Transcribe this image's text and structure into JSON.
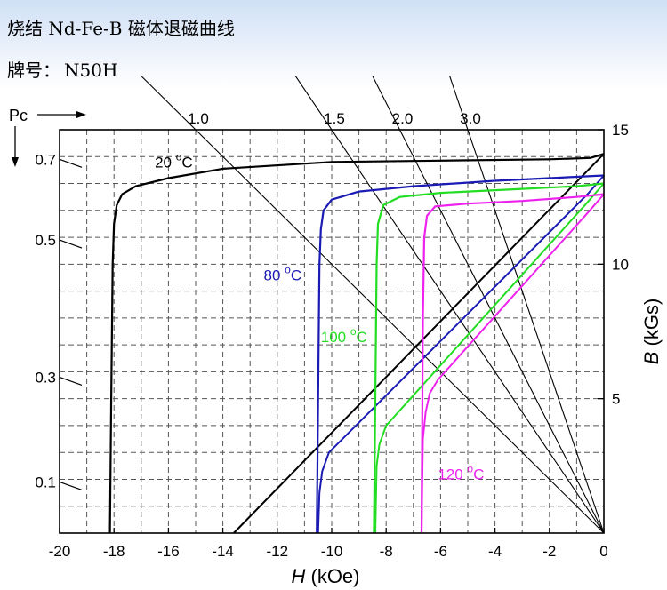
{
  "header": {
    "title": "烧结 Nd-Fe-B 磁体退磁曲线",
    "grade_label": "牌号：",
    "grade_value": "N50H"
  },
  "chart_data": {
    "type": "line",
    "xlabel_italic": "H",
    "xlabel_rest": " (kOe)",
    "ylabel_italic": "B",
    "ylabel_rest": " (kGs)",
    "pc_label": "Pc",
    "xlim": [
      -20,
      0
    ],
    "ylim": [
      0,
      15
    ],
    "x_ticks": [
      -20,
      -18,
      -16,
      -14,
      -12,
      -10,
      -8,
      -6,
      -4,
      -2,
      0
    ],
    "y_ticks_right": [
      5,
      10,
      15
    ],
    "pc_ticks": [
      {
        "label": "0.7",
        "b": 13.9
      },
      {
        "label": "0.5",
        "b": 10.9
      },
      {
        "label": "0.3",
        "b": 5.8
      },
      {
        "label": "0.1",
        "b": 1.9
      }
    ],
    "load_lines": [
      {
        "label": "1.0",
        "slope": 1.0
      },
      {
        "label": "1.5",
        "slope": 1.5
      },
      {
        "label": "2.0",
        "slope": 2.0
      },
      {
        "label": "3.0",
        "slope": 3.0
      }
    ],
    "series": [
      {
        "name": "20 °C",
        "label_main": "20 ",
        "label_sup": "o",
        "label_end": "C",
        "color": "#000000",
        "label_at": [
          -16.5,
          13.6
        ],
        "b_curve": [
          [
            0,
            14.1
          ],
          [
            -0.5,
            13.95
          ],
          [
            -2,
            13.9
          ],
          [
            -6,
            13.85
          ],
          [
            -10,
            13.8
          ],
          [
            -14,
            13.55
          ],
          [
            -16,
            13.2
          ],
          [
            -17.2,
            12.9
          ],
          [
            -17.7,
            12.6
          ],
          [
            -17.9,
            12.2
          ],
          [
            -18.0,
            11.5
          ],
          [
            -18.05,
            10
          ],
          [
            -18.1,
            5
          ],
          [
            -18.15,
            0
          ]
        ],
        "j_line": [
          [
            0,
            14.1
          ],
          [
            -13.6,
            0
          ]
        ]
      },
      {
        "name": "80 °C",
        "label_main": "80 ",
        "label_sup": "o",
        "label_end": "C",
        "color": "#1a1ab4",
        "label_at": [
          -12.5,
          9.4
        ],
        "b_curve": [
          [
            0,
            13.3
          ],
          [
            -1,
            13.25
          ],
          [
            -4,
            13.1
          ],
          [
            -7,
            12.9
          ],
          [
            -9,
            12.7
          ],
          [
            -10,
            12.4
          ],
          [
            -10.3,
            12.0
          ],
          [
            -10.4,
            11.3
          ],
          [
            -10.45,
            10
          ],
          [
            -10.5,
            5
          ],
          [
            -10.55,
            0
          ]
        ],
        "j_line": [
          [
            0,
            13.3
          ],
          [
            -0.6,
            12.6
          ],
          [
            -10.1,
            3.0
          ],
          [
            -10.35,
            2.3
          ],
          [
            -10.45,
            1.5
          ],
          [
            -10.5,
            0
          ]
        ]
      },
      {
        "name": "100 °C",
        "label_main": "100 ",
        "label_sup": "o",
        "label_end": "C",
        "color": "#22dd22",
        "label_at": [
          -10.4,
          7.1
        ],
        "b_curve": [
          [
            0,
            13.0
          ],
          [
            -1,
            12.9
          ],
          [
            -3,
            12.8
          ],
          [
            -6,
            12.65
          ],
          [
            -7.5,
            12.5
          ],
          [
            -8.1,
            12.2
          ],
          [
            -8.3,
            11.5
          ],
          [
            -8.35,
            10
          ],
          [
            -8.4,
            5
          ],
          [
            -8.45,
            0
          ]
        ],
        "j_line": [
          [
            0,
            13.0
          ],
          [
            -0.6,
            12.3
          ],
          [
            -8.0,
            4.0
          ],
          [
            -8.25,
            3.3
          ],
          [
            -8.35,
            2.5
          ],
          [
            -8.4,
            0
          ]
        ]
      },
      {
        "name": "120 °C",
        "label_main": "120 ",
        "label_sup": "o",
        "label_end": "C",
        "color": "#ee22ee",
        "label_at": [
          -6.1,
          2.0
        ],
        "b_curve": [
          [
            0,
            12.6
          ],
          [
            -1,
            12.5
          ],
          [
            -3,
            12.35
          ],
          [
            -5,
            12.25
          ],
          [
            -6.2,
            12.15
          ],
          [
            -6.5,
            11.8
          ],
          [
            -6.6,
            11.0
          ],
          [
            -6.65,
            8
          ],
          [
            -6.7,
            0
          ]
        ],
        "j_line": [
          [
            0,
            12.6
          ],
          [
            -0.6,
            11.9
          ],
          [
            -6.1,
            5.7
          ],
          [
            -6.4,
            5.2
          ],
          [
            -6.55,
            4.5
          ],
          [
            -6.65,
            3.5
          ],
          [
            -6.7,
            0
          ]
        ]
      }
    ]
  }
}
